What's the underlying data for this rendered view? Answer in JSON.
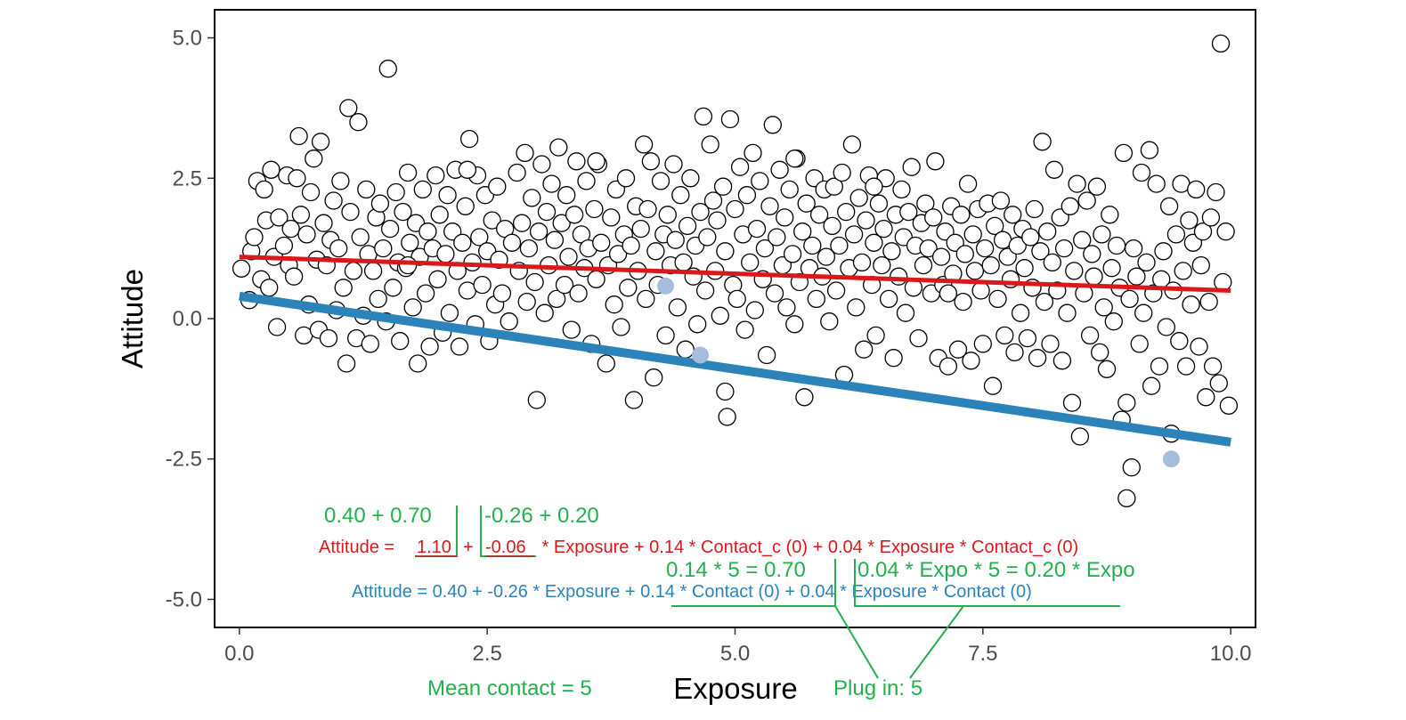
{
  "chart_data": {
    "type": "scatter",
    "title": "",
    "xlabel": "Exposure",
    "ylabel": "Attitude",
    "xlim": [
      -0.25,
      10.25
    ],
    "ylim": [
      -5.5,
      5.5
    ],
    "x_ticks": [
      "0.0",
      "2.5",
      "5.0",
      "7.5",
      "10.0"
    ],
    "x_tick_values": [
      0,
      2.5,
      5,
      7.5,
      10
    ],
    "y_ticks": [
      "5.0",
      "2.5",
      "0.0",
      "-2.5",
      "-5.0"
    ],
    "y_tick_values": [
      5,
      2.5,
      0,
      -2.5,
      -5
    ],
    "grid": false,
    "legend": "none",
    "colors": {
      "red_line": "#d8191c",
      "blue_line": "#2b83ba",
      "annotation": "#22b14c",
      "highlight_point": "#a6bddb",
      "point_fill": "#ffffff",
      "point_stroke": "#000000"
    },
    "lines": [
      {
        "name": "red",
        "x": [
          0,
          10
        ],
        "y": [
          1.1,
          0.5
        ]
      },
      {
        "name": "blue",
        "x": [
          0,
          10
        ],
        "y": [
          0.4,
          -2.2
        ]
      }
    ],
    "highlighted_points": [
      {
        "x": 4.3,
        "y": 0.58
      },
      {
        "x": 4.65,
        "y": -0.65
      },
      {
        "x": 9.4,
        "y": -2.5
      }
    ],
    "points": [
      [
        0.02,
        0.89
      ],
      [
        0.1,
        0.33
      ],
      [
        0.12,
        1.2
      ],
      [
        0.15,
        1.45
      ],
      [
        0.18,
        2.45
      ],
      [
        0.22,
        0.7
      ],
      [
        0.25,
        2.3
      ],
      [
        0.27,
        1.75
      ],
      [
        0.3,
        0.55
      ],
      [
        0.32,
        2.65
      ],
      [
        0.35,
        1.1
      ],
      [
        0.38,
        -0.15
      ],
      [
        0.4,
        1.8
      ],
      [
        0.45,
        1.3
      ],
      [
        0.48,
        2.55
      ],
      [
        0.5,
        0.95
      ],
      [
        0.52,
        1.6
      ],
      [
        0.55,
        0.75
      ],
      [
        0.58,
        2.5
      ],
      [
        0.6,
        3.25
      ],
      [
        0.62,
        1.85
      ],
      [
        0.65,
        -0.3
      ],
      [
        0.68,
        1.5
      ],
      [
        0.7,
        0.25
      ],
      [
        0.72,
        2.25
      ],
      [
        0.75,
        2.85
      ],
      [
        0.78,
        1.05
      ],
      [
        0.8,
        -0.2
      ],
      [
        0.82,
        3.15
      ],
      [
        0.85,
        1.7
      ],
      [
        0.88,
        0.95
      ],
      [
        0.9,
        -0.35
      ],
      [
        0.92,
        1.4
      ],
      [
        0.95,
        2.1
      ],
      [
        0.98,
        0.15
      ],
      [
        1.0,
        1.25
      ],
      [
        1.02,
        2.45
      ],
      [
        1.05,
        0.55
      ],
      [
        1.08,
        -0.8
      ],
      [
        1.1,
        3.75
      ],
      [
        1.12,
        1.9
      ],
      [
        1.15,
        0.85
      ],
      [
        1.18,
        -0.35
      ],
      [
        1.2,
        3.5
      ],
      [
        1.22,
        1.45
      ],
      [
        1.25,
        0.05
      ],
      [
        1.28,
        2.3
      ],
      [
        1.3,
        1.15
      ],
      [
        1.32,
        -0.45
      ],
      [
        1.35,
        0.85
      ],
      [
        1.38,
        1.8
      ],
      [
        1.4,
        0.35
      ],
      [
        1.42,
        2.05
      ],
      [
        1.45,
        1.25
      ],
      [
        1.48,
        -0.05
      ],
      [
        1.5,
        4.45
      ],
      [
        1.52,
        1.6
      ],
      [
        1.55,
        0.55
      ],
      [
        1.58,
        2.25
      ],
      [
        1.6,
        1.0
      ],
      [
        1.62,
        -0.4
      ],
      [
        1.65,
        1.9
      ],
      [
        1.68,
        0.9
      ],
      [
        1.7,
        2.6
      ],
      [
        1.72,
        1.35
      ],
      [
        1.75,
        0.2
      ],
      [
        1.78,
        1.7
      ],
      [
        1.8,
        -0.8
      ],
      [
        1.82,
        1.1
      ],
      [
        1.85,
        2.3
      ],
      [
        1.88,
        0.45
      ],
      [
        1.9,
        1.55
      ],
      [
        1.92,
        -0.5
      ],
      [
        1.95,
        1.25
      ],
      [
        1.98,
        2.55
      ],
      [
        2.0,
        0.7
      ],
      [
        2.02,
        1.85
      ],
      [
        2.05,
        -0.25
      ],
      [
        2.08,
        1.15
      ],
      [
        2.1,
        2.2
      ],
      [
        2.12,
        0.1
      ],
      [
        2.15,
        1.55
      ],
      [
        2.18,
        2.65
      ],
      [
        2.2,
        0.85
      ],
      [
        2.22,
        -0.5
      ],
      [
        2.25,
        1.35
      ],
      [
        2.28,
        2.0
      ],
      [
        2.3,
        0.5
      ],
      [
        2.32,
        3.2
      ],
      [
        2.35,
        1.0
      ],
      [
        2.38,
        -0.1
      ],
      [
        2.4,
        2.55
      ],
      [
        2.42,
        1.45
      ],
      [
        2.45,
        0.6
      ],
      [
        2.48,
        2.2
      ],
      [
        2.5,
        1.2
      ],
      [
        2.52,
        -0.4
      ],
      [
        2.55,
        1.75
      ],
      [
        2.58,
        0.25
      ],
      [
        2.6,
        2.35
      ],
      [
        2.62,
        1.05
      ],
      [
        2.65,
        0.45
      ],
      [
        2.68,
        1.6
      ],
      [
        2.72,
        -0.05
      ],
      [
        2.75,
        1.35
      ],
      [
        2.8,
        2.6
      ],
      [
        2.82,
        0.85
      ],
      [
        2.85,
        1.7
      ],
      [
        2.88,
        2.95
      ],
      [
        2.9,
        0.3
      ],
      [
        2.92,
        1.25
      ],
      [
        2.95,
        2.15
      ],
      [
        2.98,
        0.65
      ],
      [
        3.0,
        -1.45
      ],
      [
        3.02,
        1.55
      ],
      [
        3.05,
        2.75
      ],
      [
        3.08,
        0.1
      ],
      [
        3.1,
        1.9
      ],
      [
        3.12,
        0.95
      ],
      [
        3.15,
        2.4
      ],
      [
        3.18,
        1.4
      ],
      [
        3.2,
        0.35
      ],
      [
        3.22,
        3.05
      ],
      [
        3.25,
        1.7
      ],
      [
        3.28,
        0.6
      ],
      [
        3.3,
        2.2
      ],
      [
        3.32,
        1.1
      ],
      [
        3.35,
        -0.2
      ],
      [
        3.38,
        1.85
      ],
      [
        3.4,
        2.8
      ],
      [
        3.42,
        0.45
      ],
      [
        3.45,
        1.5
      ],
      [
        3.48,
        0.9
      ],
      [
        3.5,
        2.45
      ],
      [
        3.52,
        1.25
      ],
      [
        3.55,
        -0.45
      ],
      [
        3.58,
        1.95
      ],
      [
        3.6,
        0.7
      ],
      [
        3.62,
        2.75
      ],
      [
        3.65,
        1.35
      ],
      [
        3.7,
        -0.8
      ],
      [
        3.72,
        0.95
      ],
      [
        3.75,
        1.8
      ],
      [
        3.78,
        0.25
      ],
      [
        3.8,
        2.3
      ],
      [
        3.82,
        1.15
      ],
      [
        3.85,
        -0.15
      ],
      [
        3.88,
        1.5
      ],
      [
        3.9,
        2.5
      ],
      [
        3.92,
        0.55
      ],
      [
        3.95,
        1.3
      ],
      [
        3.98,
        -1.45
      ],
      [
        4.0,
        2.0
      ],
      [
        4.02,
        0.85
      ],
      [
        4.05,
        1.6
      ],
      [
        4.08,
        3.1
      ],
      [
        4.1,
        0.35
      ],
      [
        4.12,
        1.95
      ],
      [
        4.15,
        2.8
      ],
      [
        4.18,
        -1.05
      ],
      [
        4.2,
        1.2
      ],
      [
        4.22,
        0.6
      ],
      [
        4.25,
        2.45
      ],
      [
        4.28,
        1.5
      ],
      [
        4.3,
        -0.3
      ],
      [
        4.32,
        1.85
      ],
      [
        4.35,
        0.95
      ],
      [
        4.38,
        2.75
      ],
      [
        4.4,
        1.4
      ],
      [
        4.42,
        0.2
      ],
      [
        4.45,
        2.2
      ],
      [
        4.48,
        1.0
      ],
      [
        4.5,
        -0.55
      ],
      [
        4.52,
        1.65
      ],
      [
        4.55,
        2.5
      ],
      [
        4.58,
        0.75
      ],
      [
        4.6,
        1.3
      ],
      [
        4.62,
        -0.1
      ],
      [
        4.65,
        1.9
      ],
      [
        4.68,
        3.6
      ],
      [
        4.7,
        0.5
      ],
      [
        4.72,
        1.45
      ],
      [
        4.75,
        3.1
      ],
      [
        4.78,
        2.1
      ],
      [
        4.8,
        0.85
      ],
      [
        4.82,
        1.75
      ],
      [
        4.85,
        0.05
      ],
      [
        4.88,
        2.35
      ],
      [
        4.9,
        1.2
      ],
      [
        4.92,
        -1.75
      ],
      [
        4.95,
        3.55
      ],
      [
        4.98,
        0.6
      ],
      [
        5.0,
        1.95
      ],
      [
        5.02,
        0.35
      ],
      [
        5.05,
        2.7
      ],
      [
        5.08,
        1.5
      ],
      [
        5.1,
        -0.2
      ],
      [
        5.12,
        2.2
      ],
      [
        5.15,
        1.0
      ],
      [
        5.18,
        2.95
      ],
      [
        5.2,
        0.15
      ],
      [
        5.22,
        1.6
      ],
      [
        5.25,
        2.45
      ],
      [
        5.28,
        0.7
      ],
      [
        5.3,
        1.25
      ],
      [
        5.32,
        -0.65
      ],
      [
        5.35,
        2.0
      ],
      [
        5.38,
        3.45
      ],
      [
        5.4,
        0.45
      ],
      [
        5.42,
        1.45
      ],
      [
        5.45,
        2.65
      ],
      [
        5.48,
        0.95
      ],
      [
        5.5,
        1.8
      ],
      [
        5.52,
        0.2
      ],
      [
        5.55,
        2.3
      ],
      [
        5.58,
        1.15
      ],
      [
        5.6,
        -0.1
      ],
      [
        5.62,
        2.85
      ],
      [
        5.65,
        0.65
      ],
      [
        5.68,
        1.55
      ],
      [
        5.7,
        -1.4
      ],
      [
        5.72,
        2.05
      ],
      [
        5.75,
        0.9
      ],
      [
        5.78,
        1.3
      ],
      [
        5.8,
        2.5
      ],
      [
        5.82,
        0.35
      ],
      [
        5.85,
        1.85
      ],
      [
        5.88,
        0.75
      ],
      [
        5.9,
        2.3
      ],
      [
        5.92,
        1.1
      ],
      [
        5.95,
        -0.05
      ],
      [
        5.98,
        1.65
      ],
      [
        6.0,
        2.35
      ],
      [
        6.02,
        0.5
      ],
      [
        6.05,
        1.3
      ],
      [
        6.08,
        2.6
      ],
      [
        6.1,
        -1.0
      ],
      [
        6.12,
        1.9
      ],
      [
        6.15,
        0.9
      ],
      [
        6.18,
        3.1
      ],
      [
        6.2,
        1.5
      ],
      [
        6.22,
        0.2
      ],
      [
        6.25,
        2.15
      ],
      [
        6.28,
        1.0
      ],
      [
        6.3,
        -0.55
      ],
      [
        6.32,
        1.75
      ],
      [
        6.35,
        2.55
      ],
      [
        6.38,
        0.6
      ],
      [
        6.4,
        1.35
      ],
      [
        6.42,
        -0.3
      ],
      [
        6.45,
        2.05
      ],
      [
        6.48,
        0.95
      ],
      [
        6.5,
        1.6
      ],
      [
        6.52,
        2.5
      ],
      [
        6.55,
        0.35
      ],
      [
        6.58,
        1.2
      ],
      [
        6.6,
        -0.7
      ],
      [
        6.62,
        1.85
      ],
      [
        6.65,
        0.75
      ],
      [
        6.68,
        2.3
      ],
      [
        6.7,
        1.45
      ],
      [
        6.72,
        0.1
      ],
      [
        6.75,
        1.9
      ],
      [
        6.78,
        2.7
      ],
      [
        6.8,
        0.55
      ],
      [
        6.82,
        1.3
      ],
      [
        6.85,
        -0.35
      ],
      [
        6.88,
        1.7
      ],
      [
        6.9,
        0.95
      ],
      [
        6.92,
        2.05
      ],
      [
        6.95,
        1.25
      ],
      [
        6.98,
        0.45
      ],
      [
        7.0,
        1.8
      ],
      [
        7.02,
        2.8
      ],
      [
        7.05,
        -0.7
      ],
      [
        7.08,
        1.1
      ],
      [
        7.1,
        0.6
      ],
      [
        7.12,
        1.55
      ],
      [
        7.15,
        -0.85
      ],
      [
        7.18,
        2.0
      ],
      [
        7.2,
        0.8
      ],
      [
        7.22,
        1.35
      ],
      [
        7.25,
        -0.55
      ],
      [
        7.28,
        1.85
      ],
      [
        7.3,
        0.3
      ],
      [
        7.32,
        1.15
      ],
      [
        7.35,
        2.4
      ],
      [
        7.38,
        -0.75
      ],
      [
        7.4,
        1.5
      ],
      [
        7.42,
        0.85
      ],
      [
        7.45,
        1.95
      ],
      [
        7.48,
        0.5
      ],
      [
        7.5,
        -0.45
      ],
      [
        7.52,
        1.25
      ],
      [
        7.55,
        2.05
      ],
      [
        7.58,
        0.95
      ],
      [
        7.6,
        -1.2
      ],
      [
        7.62,
        1.65
      ],
      [
        7.65,
        0.35
      ],
      [
        7.68,
        2.1
      ],
      [
        7.7,
        1.4
      ],
      [
        7.72,
        -0.3
      ],
      [
        7.75,
        1.1
      ],
      [
        7.78,
        0.7
      ],
      [
        7.8,
        1.85
      ],
      [
        7.82,
        -0.6
      ],
      [
        7.85,
        1.3
      ],
      [
        7.88,
        0.1
      ],
      [
        7.9,
        1.6
      ],
      [
        7.92,
        0.9
      ],
      [
        7.95,
        -0.35
      ],
      [
        7.98,
        1.45
      ],
      [
        8.0,
        0.55
      ],
      [
        8.02,
        1.95
      ],
      [
        8.05,
        -0.7
      ],
      [
        8.08,
        1.2
      ],
      [
        8.1,
        3.15
      ],
      [
        8.12,
        0.3
      ],
      [
        8.15,
        1.55
      ],
      [
        8.18,
        -0.45
      ],
      [
        8.2,
        1.0
      ],
      [
        8.22,
        2.65
      ],
      [
        8.25,
        0.5
      ],
      [
        8.28,
        1.8
      ],
      [
        8.3,
        -0.75
      ],
      [
        8.32,
        1.25
      ],
      [
        8.35,
        0.1
      ],
      [
        8.38,
        2.0
      ],
      [
        8.4,
        -1.5
      ],
      [
        8.42,
        0.85
      ],
      [
        8.45,
        2.4
      ],
      [
        8.48,
        -2.1
      ],
      [
        8.5,
        1.4
      ],
      [
        8.52,
        0.45
      ],
      [
        8.55,
        2.1
      ],
      [
        8.58,
        -0.3
      ],
      [
        8.6,
        1.15
      ],
      [
        8.62,
        0.75
      ],
      [
        8.65,
        2.35
      ],
      [
        8.68,
        -0.6
      ],
      [
        8.7,
        1.5
      ],
      [
        8.72,
        0.2
      ],
      [
        8.75,
        -0.9
      ],
      [
        8.78,
        1.85
      ],
      [
        8.8,
        0.9
      ],
      [
        8.82,
        -0.05
      ],
      [
        8.85,
        1.3
      ],
      [
        8.88,
        0.55
      ],
      [
        8.9,
        -1.8
      ],
      [
        8.92,
        2.95
      ],
      [
        8.95,
        -1.5
      ],
      [
        8.98,
        0.35
      ],
      [
        9.0,
        -2.65
      ],
      [
        9.02,
        1.25
      ],
      [
        9.05,
        0.75
      ],
      [
        9.08,
        -0.45
      ],
      [
        9.1,
        2.6
      ],
      [
        9.12,
        0.1
      ],
      [
        9.15,
        1.0
      ],
      [
        9.18,
        3.0
      ],
      [
        9.2,
        -1.2
      ],
      [
        9.22,
        0.45
      ],
      [
        9.25,
        2.4
      ],
      [
        9.28,
        -0.85
      ],
      [
        9.3,
        0.7
      ],
      [
        9.32,
        1.2
      ],
      [
        9.35,
        -0.15
      ],
      [
        9.38,
        2.0
      ],
      [
        9.4,
        -2.05
      ],
      [
        9.42,
        0.5
      ],
      [
        9.45,
        1.5
      ],
      [
        9.48,
        -0.4
      ],
      [
        9.5,
        2.4
      ],
      [
        9.52,
        0.85
      ],
      [
        9.55,
        -0.85
      ],
      [
        9.58,
        1.75
      ],
      [
        9.6,
        0.25
      ],
      [
        9.62,
        1.35
      ],
      [
        9.65,
        2.3
      ],
      [
        9.68,
        -0.5
      ],
      [
        9.7,
        0.95
      ],
      [
        9.72,
        1.55
      ],
      [
        9.75,
        -1.4
      ],
      [
        9.78,
        0.3
      ],
      [
        9.8,
        1.8
      ],
      [
        9.82,
        -0.85
      ],
      [
        9.85,
        2.25
      ],
      [
        9.88,
        -1.15
      ],
      [
        9.9,
        4.9
      ],
      [
        9.92,
        0.65
      ],
      [
        9.95,
        1.55
      ],
      [
        9.98,
        -1.55
      ],
      [
        8.95,
        -3.2
      ],
      [
        3.6,
        2.8
      ],
      [
        5.6,
        2.85
      ],
      [
        6.4,
        2.35
      ],
      [
        2.3,
        2.65
      ],
      [
        7.15,
        0.45
      ],
      [
        1.7,
        0.95
      ],
      [
        4.9,
        -1.3
      ]
    ]
  },
  "annotations": {
    "sum_left": "0.40 + 0.70",
    "sum_right": "-0.26 + 0.20",
    "red_prefix": "Attitude = ",
    "red_intercept": "1.10",
    "red_plus": "+",
    "red_slope": "-0.06",
    "red_rest": " * Exposure + 0.14 * Contact_c (0) + 0.04 * Exposure * Contact_c (0)",
    "calc_left": "0.14 * 5 = 0.70",
    "calc_right": "0.04 * Expo * 5 = 0.20 * Expo",
    "blue_eq": "Attitude = 0.40 + -0.26 * Exposure + 0.14 * Contact (0) + 0.04 * Exposure * Contact (0)",
    "mean_contact": "Mean contact = 5",
    "plug_in": "Plug in: 5"
  }
}
